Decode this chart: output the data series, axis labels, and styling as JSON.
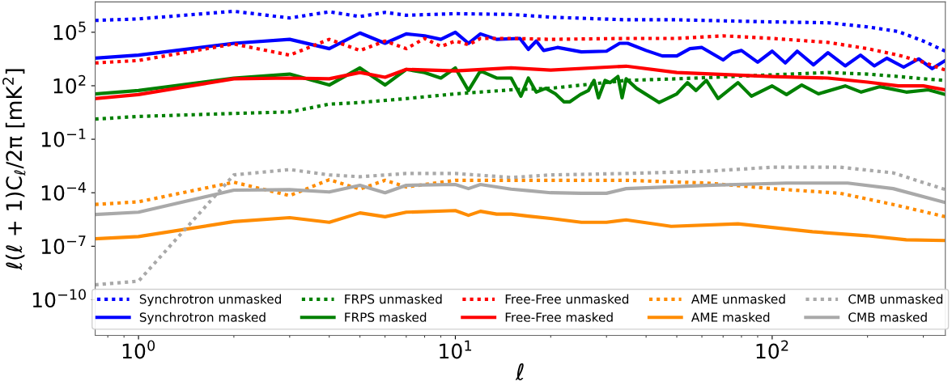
{
  "chart_data": {
    "type": "line",
    "xlabel": "ℓ",
    "ylabel": "ℓ(ℓ + 1)C$_{ℓ}$/2π [mK$^{2}$]",
    "log": "xy",
    "grid": false,
    "legend": "bottom",
    "marker": "none",
    "xlim": [
      0.73,
      352
    ],
    "ylim": [
      1e-12,
      5000000.0
    ],
    "xticks": [
      {
        "value": 1,
        "label": "10$^{0}$"
      },
      {
        "value": 10,
        "label": "10$^{1}$"
      },
      {
        "value": 100,
        "label": "10$^{2}$"
      }
    ],
    "yticks": [
      {
        "value": 1e-10,
        "label": "10$^{−10}$"
      },
      {
        "value": 1e-07,
        "label": "10$^{−7}$"
      },
      {
        "value": 0.0001,
        "label": "10$^{−4}$"
      },
      {
        "value": 0.1,
        "label": "10$^{−1}$"
      },
      {
        "value": 100,
        "label": "10$^{2}$"
      },
      {
        "value": 100000,
        "label": "10$^{5}$"
      }
    ],
    "series": [
      {
        "name": "Synchrotron unmasked",
        "color": "#0000ff",
        "line_style": "dotted",
        "x": [
          0.73,
          1,
          2,
          3,
          4,
          5,
          6,
          7,
          10,
          15,
          20,
          34.6,
          50,
          100,
          150,
          200,
          250,
          300,
          352
        ],
        "values": [
          460000.0,
          560000.0,
          1500000.0,
          630000.0,
          1400000.0,
          760000.0,
          1300000.0,
          900000.0,
          1100000.0,
          1000000.0,
          700000.0,
          500000.0,
          500000.0,
          380000.0,
          340000.0,
          200000.0,
          110000.0,
          32000.0,
          8700.0
        ]
      },
      {
        "name": "Synchrotron masked",
        "color": "#0000ff",
        "line_style": "solid",
        "x": [
          0.73,
          1,
          2,
          3,
          4,
          5,
          6,
          7,
          8,
          9,
          10,
          11,
          12,
          13.5,
          16,
          17,
          18,
          19,
          21,
          25,
          30,
          33,
          35,
          40,
          45,
          50,
          55,
          60,
          70,
          75,
          80,
          90,
          100,
          110,
          120,
          135,
          150,
          170,
          190,
          210,
          230,
          260,
          290,
          320,
          352
        ],
        "values": [
          3500.0,
          5200.0,
          24000.0,
          40000.0,
          12000.0,
          91000.0,
          24000.0,
          81000.0,
          63000.0,
          40000.0,
          100000.0,
          24000.0,
          81000.0,
          40000.0,
          45000.0,
          11000.0,
          32000.0,
          9500.0,
          14000.0,
          7900.0,
          8700.0,
          24000.0,
          24000.0,
          9500.0,
          4700.0,
          4700.0,
          12000.0,
          14000.0,
          2800.0,
          7100.0,
          9500.0,
          2100.0,
          8700.0,
          1900.0,
          8700.0,
          1500.0,
          7100.0,
          1300.0,
          5200.0,
          1300.0,
          3500.0,
          1100.0,
          3200.0,
          910,
          2600.0
        ]
      },
      {
        "name": "FRPS unmasked",
        "color": "#008000",
        "line_style": "dotted",
        "x": [
          0.73,
          1,
          2,
          3,
          4,
          5,
          7,
          10,
          15,
          20,
          34.6,
          50,
          100,
          150,
          200,
          250,
          300,
          352
        ],
        "values": [
          1.35,
          1.9,
          2.8,
          3.4,
          9.3,
          11.5,
          19,
          35,
          59,
          72,
          200,
          245,
          410,
          550,
          450,
          330,
          245,
          200
        ]
      },
      {
        "name": "FRPS masked",
        "color": "#008000",
        "line_style": "solid",
        "x": [
          0.73,
          1,
          2,
          3,
          4,
          5,
          6,
          7,
          8,
          9,
          10,
          11,
          12,
          13.5,
          15,
          16.1,
          17,
          18,
          19.3,
          20.7,
          22,
          23,
          24.8,
          26.3,
          27.4,
          28.3,
          29.7,
          30.8,
          32.6,
          33.6,
          34.6,
          37.3,
          44,
          50,
          54,
          57.5,
          62,
          67.5,
          78,
          86,
          100,
          111,
          124,
          140,
          170,
          191,
          219,
          265,
          311,
          352
        ],
        "values": [
          35,
          54,
          270,
          450,
          110,
          1000,
          110,
          830,
          550,
          270,
          1000,
          54,
          680,
          270,
          270,
          26,
          270,
          44,
          72,
          35,
          12.6,
          12.6,
          32,
          54,
          200,
          21,
          200,
          150,
          330,
          21,
          245,
          72,
          11.5,
          35,
          150,
          54,
          200,
          19,
          150,
          26,
          98,
          32,
          110,
          35,
          98,
          44,
          89,
          44,
          59,
          32
        ]
      },
      {
        "name": "Free-Free unmasked",
        "color": "#ff0000",
        "line_style": "dotted",
        "x": [
          0.73,
          1,
          2,
          3,
          4,
          5,
          6,
          7,
          8,
          9,
          10,
          11,
          12,
          15,
          20,
          34.6,
          50,
          70,
          100,
          150,
          200,
          250,
          300,
          352
        ],
        "values": [
          1900.0,
          2600.0,
          22000.0,
          5200.0,
          40000.0,
          9500.0,
          32000.0,
          12000.0,
          45000.0,
          16000.0,
          32000.0,
          20000.0,
          45000.0,
          45000.0,
          40000.0,
          45000.0,
          45000.0,
          63000.0,
          45000.0,
          27000.0,
          12000.0,
          5200.0,
          2100.0,
          760
        ]
      },
      {
        "name": "Free-Free masked",
        "color": "#ff0000",
        "line_style": "solid",
        "x": [
          0.73,
          1,
          2,
          3,
          4,
          5,
          6,
          7,
          10,
          15,
          20,
          34.6,
          50,
          100,
          150,
          200,
          250,
          300,
          352
        ],
        "values": [
          19,
          32,
          245,
          270,
          245,
          550,
          300,
          830,
          680,
          1000,
          760,
          1250,
          550,
          330,
          270,
          160,
          98,
          98,
          59
        ]
      },
      {
        "name": "AME unmasked",
        "color": "#ff8c00",
        "line_style": "dotted",
        "x": [
          0.73,
          1,
          2,
          3,
          4,
          5,
          6,
          7,
          10,
          15,
          34.6,
          62,
          100,
          164,
          241,
          352
        ],
        "values": [
          2.2e-05,
          3.1e-05,
          0.00039,
          6.9e-05,
          0.00054,
          0.00016,
          0.0005,
          0.00021,
          0.0005,
          0.0005,
          0.0005,
          0.00035,
          0.00017,
          9.3e-05,
          2.2e-05,
          4.5e-06
        ]
      },
      {
        "name": "AME masked",
        "color": "#ff8c00",
        "line_style": "solid",
        "x": [
          0.73,
          1,
          2,
          3,
          4,
          5,
          6,
          7,
          10,
          11,
          12,
          13.5,
          15,
          17,
          20,
          25,
          30,
          34.6,
          48,
          78,
          134,
          199,
          265,
          352
        ],
        "values": [
          2.6e-07,
          3.5e-07,
          2.4e-06,
          4e-06,
          2.2e-06,
          7.4e-06,
          4.5e-06,
          8.1e-06,
          1e-05,
          5.4e-06,
          9.1e-06,
          6.3e-06,
          6.3e-06,
          4.9e-06,
          3.6e-06,
          2.2e-06,
          2.2e-06,
          3e-06,
          1.3e-06,
          1.8e-06,
          6.5e-07,
          3.9e-07,
          2.3e-07,
          2.1e-07
        ]
      },
      {
        "name": "CMB unmasked",
        "color": "#a9a9a9",
        "line_style": "dotted",
        "x": [
          0.73,
          1,
          2,
          3,
          4,
          5,
          7,
          10,
          15,
          20,
          34.6,
          62,
          100,
          164,
          241,
          352
        ],
        "values": [
          6.9e-10,
          1.1e-09,
          0.001,
          0.002,
          0.001,
          0.00079,
          0.0012,
          0.0012,
          0.00072,
          0.001,
          0.0012,
          0.0016,
          0.0027,
          0.0027,
          0.0013,
          0.00015
        ]
      },
      {
        "name": "CMB masked",
        "color": "#a9a9a9",
        "line_style": "solid",
        "x": [
          0.73,
          1,
          2,
          3,
          4,
          5,
          6,
          7,
          10,
          11,
          12,
          15,
          17,
          20,
          25,
          30,
          34.6,
          62,
          111,
          173,
          241,
          352
        ],
        "values": [
          6e-06,
          8.1e-06,
          0.00014,
          0.00015,
          0.00011,
          0.00026,
          0.0001,
          0.00026,
          0.00029,
          0.00017,
          0.00029,
          0.00016,
          0.00013,
          0.0001,
          9.3e-05,
          9.3e-05,
          0.00017,
          0.00026,
          0.00035,
          0.00035,
          0.00017,
          2.8e-05
        ]
      }
    ]
  }
}
